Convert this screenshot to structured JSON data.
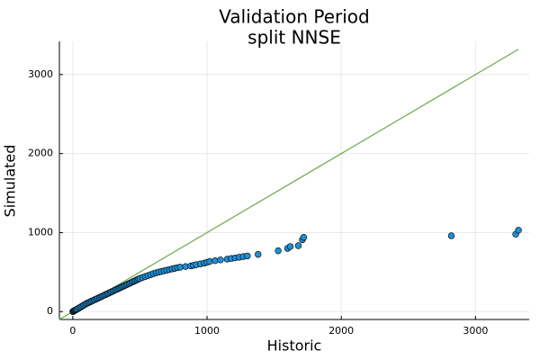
{
  "chart_data": {
    "type": "scatter",
    "title": "Validation Period",
    "subtitle": "split NNSE",
    "xlabel": "Historic",
    "ylabel": "Simulated",
    "xlim": [
      -100,
      3400
    ],
    "ylim": [
      -100,
      3420
    ],
    "xticks": [
      0,
      1000,
      2000,
      3000
    ],
    "yticks": [
      0,
      1000,
      2000,
      3000
    ],
    "xtick_labels": [
      "0",
      "1000",
      "2000",
      "3000"
    ],
    "ytick_labels": [
      "0",
      "1000",
      "2000",
      "3000"
    ],
    "grid": true,
    "legend": "none",
    "colors": {
      "points": "#1f8fd6",
      "point_edge": "#000000",
      "line": "#6fa84a"
    },
    "series": [
      {
        "type": "scatter",
        "x": [
          0,
          5,
          10,
          15,
          20,
          25,
          30,
          40,
          50,
          60,
          70,
          80,
          90,
          100,
          110,
          120,
          130,
          140,
          150,
          160,
          170,
          180,
          190,
          200,
          210,
          220,
          230,
          240,
          250,
          260,
          270,
          280,
          290,
          300,
          310,
          320,
          330,
          340,
          350,
          360,
          370,
          380,
          390,
          400,
          410,
          420,
          430,
          440,
          450,
          460,
          470,
          480,
          490,
          500,
          520,
          540,
          560,
          580,
          600,
          620,
          640,
          660,
          680,
          700,
          720,
          740,
          760,
          780,
          800,
          840,
          880,
          900,
          920,
          950,
          980,
          1000,
          1020,
          1060,
          1100,
          1150,
          1180,
          1210,
          1240,
          1270,
          1300,
          1380,
          1530,
          1600,
          1620,
          1680,
          1710,
          1720,
          2820,
          3300,
          3320
        ],
        "y": [
          0,
          5,
          10,
          15,
          20,
          25,
          30,
          40,
          50,
          60,
          70,
          80,
          90,
          100,
          108,
          116,
          124,
          132,
          140,
          148,
          156,
          164,
          172,
          180,
          188,
          196,
          204,
          212,
          220,
          228,
          236,
          244,
          252,
          260,
          268,
          276,
          284,
          292,
          300,
          308,
          316,
          324,
          332,
          340,
          348,
          356,
          364,
          372,
          380,
          388,
          396,
          404,
          412,
          420,
          432,
          444,
          456,
          468,
          480,
          492,
          500,
          508,
          516,
          524,
          532,
          540,
          548,
          556,
          562,
          570,
          578,
          586,
          594,
          604,
          614,
          624,
          634,
          644,
          654,
          664,
          672,
          680,
          688,
          696,
          704,
          724,
          770,
          800,
          824,
          834,
          910,
          940,
          960,
          980,
          1030
        ]
      },
      {
        "type": "line",
        "x": [
          -100,
          3320
        ],
        "y": [
          -100,
          3320
        ]
      }
    ]
  }
}
